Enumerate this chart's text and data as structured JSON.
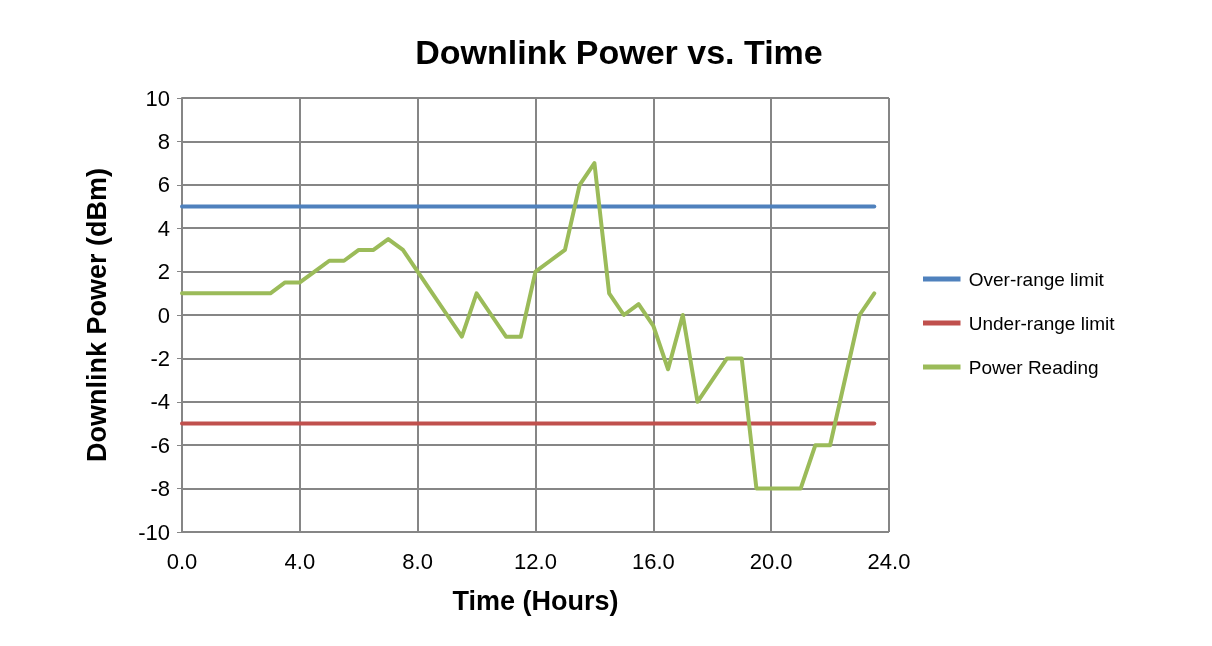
{
  "chart_data": {
    "type": "line",
    "title": "Downlink Power vs. Time",
    "xlabel": "Time (Hours)",
    "ylabel": "Downlink Power (dBm)",
    "series": [
      {
        "name": "Over-range limit",
        "color": "#4f81bd",
        "x": [
          0,
          23.5
        ],
        "values": [
          5,
          5
        ]
      },
      {
        "name": "Under-range limit",
        "color": "#c0504d",
        "x": [
          0,
          23.5
        ],
        "values": [
          -5,
          -5
        ]
      },
      {
        "name": "Power Reading",
        "color": "#9bbb59",
        "x": [
          0,
          0.5,
          1,
          1.5,
          2,
          2.5,
          3,
          3.5,
          4,
          4.5,
          5,
          5.5,
          6,
          6.5,
          7,
          7.5,
          8,
          8.5,
          9,
          9.5,
          10,
          10.5,
          11,
          11.5,
          12,
          12.5,
          13,
          13.5,
          14,
          14.5,
          15,
          15.5,
          16,
          16.5,
          17,
          17.5,
          18,
          18.5,
          19,
          19.5,
          20,
          20.5,
          21,
          21.5,
          22,
          23,
          23.5
        ],
        "values": [
          1,
          1,
          1,
          1,
          1,
          1,
          1,
          1.5,
          1.5,
          2,
          2.5,
          2.5,
          3,
          3,
          3.5,
          3,
          2,
          1,
          0,
          -1,
          1,
          0,
          -1,
          -1,
          2,
          2.5,
          3,
          6,
          7,
          1,
          0,
          0.5,
          -0.5,
          -2.5,
          0,
          -4,
          -3,
          -2,
          -2,
          -8,
          -8,
          -8,
          -8,
          -6,
          -6,
          0,
          1
        ]
      }
    ],
    "xlim": [
      0,
      24
    ],
    "xticks": [
      {
        "value": 0,
        "label": "0.0"
      },
      {
        "value": 4,
        "label": "4.0"
      },
      {
        "value": 8,
        "label": "8.0"
      },
      {
        "value": 12,
        "label": "12.0"
      },
      {
        "value": 16,
        "label": "16.0"
      },
      {
        "value": 20,
        "label": "20.0"
      },
      {
        "value": 24,
        "label": "24.0"
      }
    ],
    "ylim": [
      -10,
      10
    ],
    "yticks": [
      -10,
      -8,
      -6,
      -4,
      -2,
      0,
      2,
      4,
      6,
      8,
      10
    ],
    "grid": true,
    "legend": "right",
    "marker": "none",
    "line_style": "solid"
  }
}
